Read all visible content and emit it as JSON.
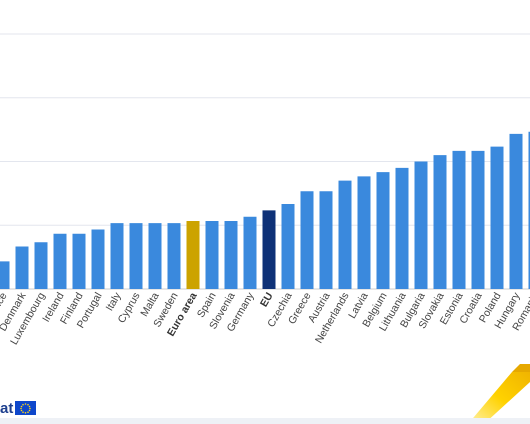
{
  "chart_data": {
    "type": "bar",
    "categories": [
      "France",
      "Denmark",
      "Luxembourg",
      "Ireland",
      "Finland",
      "Portugal",
      "Italy",
      "Cyprus",
      "Malta",
      "Sweden",
      "Euro area",
      "Spain",
      "Slovenia",
      "Germany",
      "EU",
      "Czechia",
      "Greece",
      "Austria",
      "Netherlands",
      "Latvia",
      "Belgium",
      "Lithuania",
      "Bulgaria",
      "Slovakia",
      "Estonia",
      "Croatia",
      "Poland",
      "Hungary",
      "Romania"
    ],
    "values": [
      1.3,
      2.0,
      2.2,
      2.6,
      2.6,
      2.8,
      3.1,
      3.1,
      3.1,
      3.1,
      3.2,
      3.2,
      3.2,
      3.4,
      3.7,
      4.0,
      4.6,
      4.6,
      5.1,
      5.3,
      5.5,
      5.7,
      6.0,
      6.3,
      6.5,
      6.5,
      6.7,
      7.3,
      7.4
    ],
    "highlight": {
      "Euro area": "#cca300",
      "EU": "#0e3177"
    },
    "bar_color": "#3a89dd",
    "bold_categories": [
      "Euro area",
      "EU"
    ],
    "ylim": [
      0,
      12
    ],
    "grid": true
  },
  "footer": {
    "logo_text": "at",
    "flag_icon": "eu-flag-icon",
    "ribbon_icon": "yellow-ribbon-icon"
  }
}
